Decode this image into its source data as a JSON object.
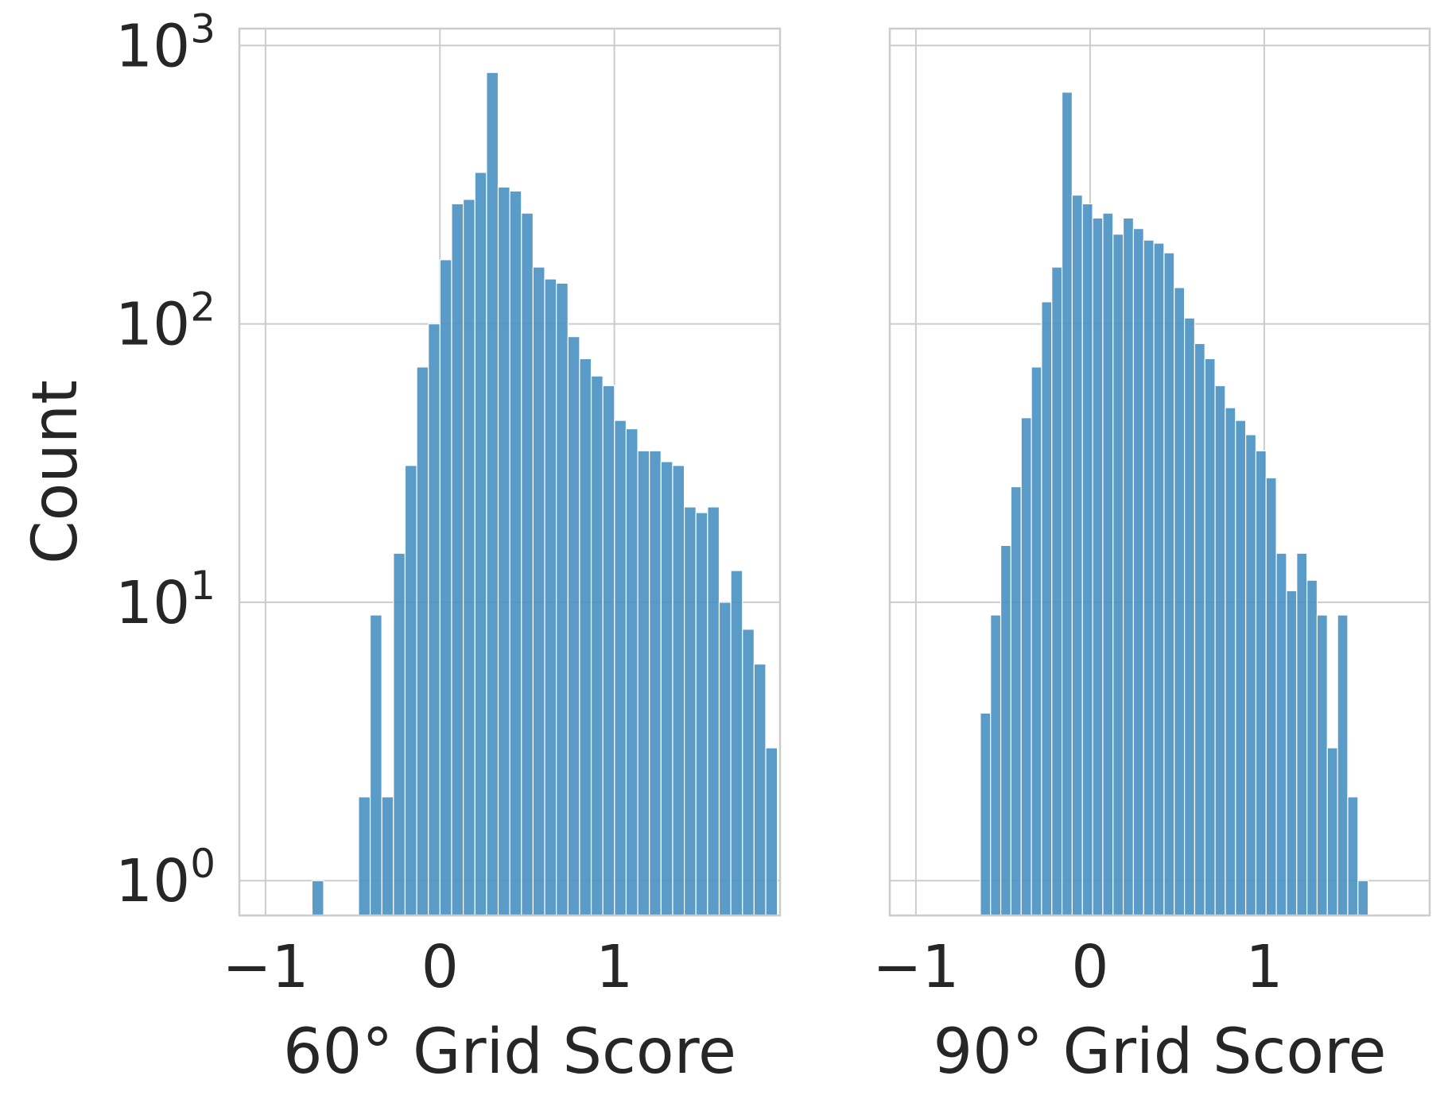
{
  "chart_data": [
    {
      "type": "bar",
      "title": "",
      "xlabel": "60° Grid Score",
      "ylabel": "Count",
      "yscale": "log",
      "ylim": [
        0.75,
        1150
      ],
      "xlim": [
        -1.15,
        1.95
      ],
      "grid": true,
      "color": "#4c92c3",
      "xticks": [
        {
          "value": -1,
          "label": "−1"
        },
        {
          "value": 0,
          "label": "0"
        },
        {
          "value": 1,
          "label": "1"
        }
      ],
      "yticks": [
        {
          "value": 1,
          "base": "10",
          "exp": "0"
        },
        {
          "value": 10,
          "base": "10",
          "exp": "1"
        },
        {
          "value": 100,
          "base": "10",
          "exp": "2"
        },
        {
          "value": 1000,
          "base": "10",
          "exp": "3"
        }
      ],
      "bins": {
        "start": -0.8,
        "width": 0.0667
      },
      "values": [
        0,
        1,
        0,
        0,
        0,
        2,
        9,
        2,
        15,
        31,
        70,
        100,
        170,
        270,
        280,
        350,
        800,
        310,
        300,
        250,
        160,
        145,
        140,
        90,
        75,
        65,
        60,
        45,
        42,
        35,
        35,
        32,
        31,
        22,
        21,
        22,
        10,
        13,
        8,
        6,
        3
      ]
    },
    {
      "type": "bar",
      "title": "",
      "xlabel": "90° Grid Score",
      "ylabel": "",
      "yscale": "log",
      "ylim": [
        0.75,
        1150
      ],
      "xlim": [
        -1.15,
        1.95
      ],
      "grid": true,
      "color": "#4c92c3",
      "xticks": [
        {
          "value": -1,
          "label": "−1"
        },
        {
          "value": 0,
          "label": "0"
        },
        {
          "value": 1,
          "label": "1"
        }
      ],
      "yticks": [
        {
          "value": 1,
          "base": "",
          "exp": ""
        },
        {
          "value": 10,
          "base": "",
          "exp": ""
        },
        {
          "value": 100,
          "base": "",
          "exp": ""
        },
        {
          "value": 1000,
          "base": "",
          "exp": ""
        }
      ],
      "bins": {
        "start": -0.63,
        "width": 0.0586
      },
      "values": [
        4,
        9,
        16,
        26,
        46,
        70,
        120,
        160,
        680,
        290,
        270,
        240,
        250,
        210,
        240,
        220,
        200,
        195,
        180,
        135,
        105,
        85,
        75,
        60,
        50,
        45,
        40,
        35,
        28,
        15,
        11,
        15,
        12,
        9,
        3,
        9,
        2,
        1
      ]
    }
  ]
}
